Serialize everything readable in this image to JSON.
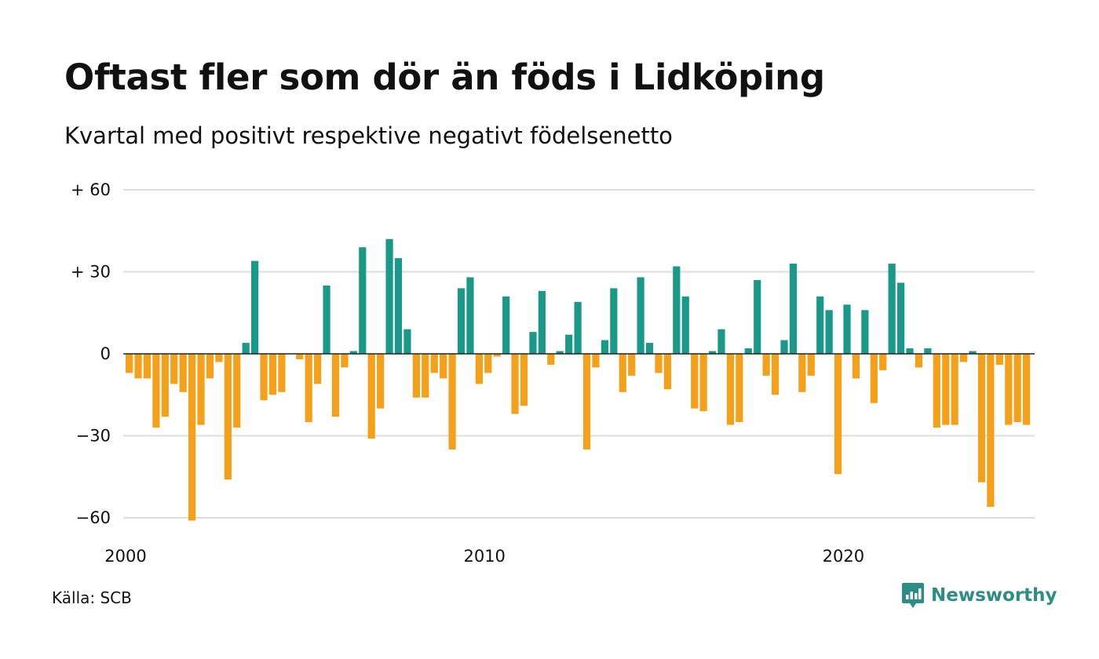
{
  "title": "Oftast fler som dör än föds i Lidköping",
  "subtitle": "Kvartal med positivt respektive negativt födelsenetto",
  "source": "Källa: SCB",
  "brand": {
    "name": "Newsworthy",
    "icon": "newsworthy-logo-icon",
    "color": "#2c8c86"
  },
  "colors": {
    "positive": "#1a9988",
    "negative": "#f5a01a",
    "grid": "#dddddd",
    "zero": "#222222"
  },
  "chart_data": {
    "type": "bar",
    "title": "Oftast fler som dör än föds i Lidköping",
    "subtitle": "Kvartal med positivt respektive negativt födelsenetto",
    "xlabel": "",
    "ylabel": "",
    "ylim": [
      -60,
      60
    ],
    "yticks": [
      60,
      30,
      0,
      -30,
      -60
    ],
    "ytick_labels": [
      "+ 60",
      "+ 30",
      "0",
      "−30",
      "−60"
    ],
    "xticks": [
      2000,
      2010,
      2020
    ],
    "xtick_labels": [
      "2000",
      "2010",
      "2020"
    ],
    "x_start_year": 2000,
    "periods_per_year": 4,
    "grid": true,
    "legend": "none",
    "values": [
      -7,
      -9,
      -9,
      -27,
      -23,
      -11,
      -14,
      -61,
      -26,
      -9,
      -3,
      -46,
      -27,
      4,
      34,
      -17,
      -15,
      -14,
      0,
      -2,
      -25,
      -11,
      25,
      -23,
      -5,
      1,
      39,
      -31,
      -20,
      42,
      35,
      9,
      -16,
      -16,
      -7,
      -9,
      -35,
      24,
      28,
      -11,
      -7,
      -1,
      21,
      -22,
      -19,
      8,
      23,
      -4,
      1,
      7,
      19,
      -35,
      -5,
      5,
      24,
      -14,
      -8,
      28,
      4,
      -7,
      -13,
      32,
      21,
      -20,
      -21,
      1,
      9,
      -26,
      -25,
      2,
      27,
      -8,
      -15,
      5,
      33,
      -14,
      -8,
      21,
      16,
      -44,
      18,
      -9,
      16,
      -18,
      -6,
      33,
      26,
      2,
      -5,
      2,
      -27,
      -26,
      -26,
      -3,
      1,
      -47,
      -56,
      -4,
      -26,
      -25,
      -26
    ]
  }
}
